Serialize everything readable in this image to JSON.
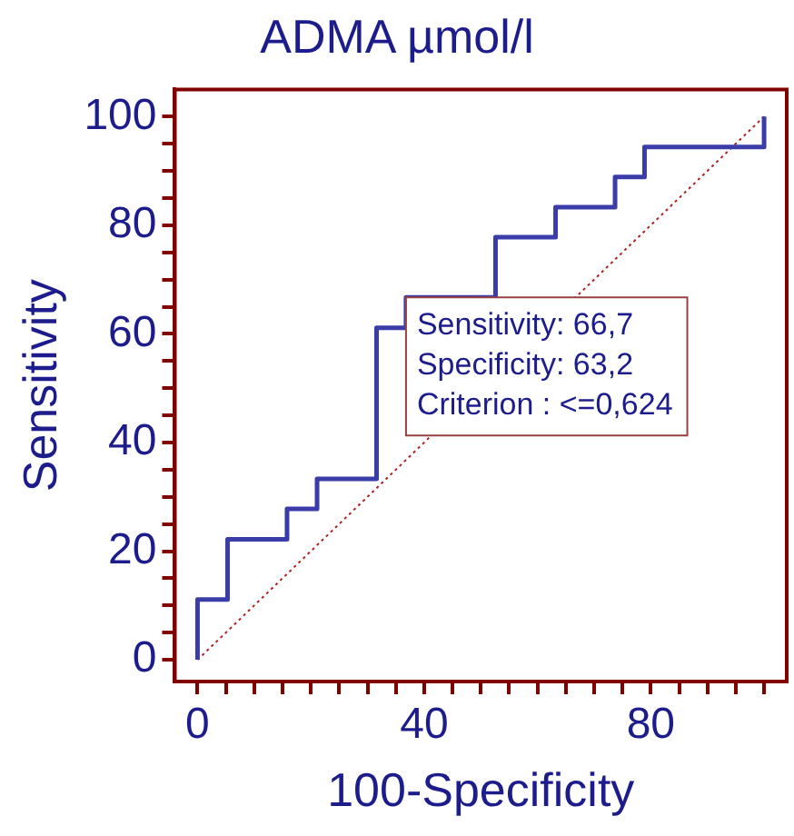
{
  "chart_data": {
    "type": "line",
    "title": "ADMA µmol/l",
    "xlabel": "100-Specificity",
    "ylabel": "Sensitivity",
    "xlim": [
      -4,
      104
    ],
    "ylim": [
      -4,
      105
    ],
    "xticks": [
      0,
      {
        "value": 5,
        "label": null
      },
      {
        "value": 10,
        "label": null
      },
      {
        "value": 15,
        "label": null
      },
      {
        "value": 20,
        "label": null
      },
      {
        "value": 25,
        "label": null
      },
      {
        "value": 30,
        "label": null
      },
      {
        "value": 35,
        "label": null
      },
      40,
      {
        "value": 45,
        "label": null
      },
      {
        "value": 50,
        "label": null
      },
      {
        "value": 55,
        "label": null
      },
      {
        "value": 60,
        "label": null
      },
      {
        "value": 65,
        "label": null
      },
      {
        "value": 70,
        "label": null
      },
      {
        "value": 75,
        "label": null
      },
      80,
      {
        "value": 85,
        "label": null
      },
      {
        "value": 90,
        "label": null
      },
      {
        "value": 95,
        "label": null
      },
      {
        "value": 100,
        "label": null
      }
    ],
    "yticks": [
      0,
      {
        "value": 5,
        "label": null
      },
      {
        "value": 10,
        "label": null
      },
      {
        "value": 15,
        "label": null
      },
      20,
      {
        "value": 25,
        "label": null
      },
      {
        "value": 30,
        "label": null
      },
      {
        "value": 35,
        "label": null
      },
      40,
      {
        "value": 45,
        "label": null
      },
      {
        "value": 50,
        "label": null
      },
      {
        "value": 55,
        "label": null
      },
      60,
      {
        "value": 65,
        "label": null
      },
      {
        "value": 70,
        "label": null
      },
      {
        "value": 75,
        "label": null
      },
      80,
      {
        "value": 85,
        "label": null
      },
      {
        "value": 90,
        "label": null
      },
      {
        "value": 95,
        "label": null
      },
      100
    ],
    "grid": false,
    "legend": false,
    "series": [
      {
        "type": "step",
        "color": "#3a3ca8",
        "x": [
          0,
          0,
          5.3,
          15.8,
          21.1,
          31.6,
          36.8,
          52.6,
          63.2,
          73.7,
          78.9,
          100
        ],
        "values": [
          0,
          11.1,
          22.2,
          27.8,
          33.3,
          61.1,
          66.7,
          77.8,
          83.3,
          88.9,
          94.4,
          100
        ]
      },
      {
        "type": "line",
        "color": "#b02020",
        "line_style": "dotted",
        "x": [
          0,
          100
        ],
        "values": [
          0,
          100
        ]
      }
    ],
    "annotations": [
      {
        "text": "Sensitivity: 66,7\nSpecificity: 63,2\nCriterion : <=0,624",
        "x": 36.8,
        "y": 66.7
      }
    ]
  }
}
